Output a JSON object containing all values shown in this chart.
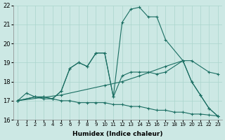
{
  "xlabel": "Humidex (Indice chaleur)",
  "bg_color": "#cce8e4",
  "grid_color": "#aad4cc",
  "line_color": "#1a6e62",
  "xlim": [
    -0.5,
    23.5
  ],
  "ylim": [
    16,
    22
  ],
  "xticks": [
    0,
    1,
    2,
    3,
    4,
    5,
    6,
    7,
    8,
    9,
    10,
    11,
    12,
    13,
    14,
    15,
    16,
    17,
    18,
    19,
    20,
    21,
    22,
    23
  ],
  "yticks": [
    16,
    17,
    18,
    19,
    20,
    21,
    22
  ],
  "series": [
    {
      "x": [
        0,
        1,
        2,
        3,
        4,
        5,
        6,
        7,
        8,
        9,
        10,
        11,
        12,
        13,
        14,
        15,
        16,
        17,
        18,
        19,
        20,
        21,
        22,
        23
      ],
      "y": [
        17.0,
        17.4,
        17.2,
        17.1,
        17.1,
        17.0,
        17.0,
        16.9,
        16.9,
        16.9,
        16.9,
        16.8,
        16.8,
        16.7,
        16.7,
        16.6,
        16.5,
        16.5,
        16.4,
        16.4,
        16.3,
        16.3,
        16.25,
        16.2
      ]
    },
    {
      "x": [
        0,
        5,
        10,
        12,
        14,
        17,
        19,
        20,
        22,
        23
      ],
      "y": [
        17.0,
        17.3,
        17.8,
        18.0,
        18.3,
        18.8,
        19.1,
        19.1,
        18.5,
        18.4
      ]
    },
    {
      "x": [
        0,
        2,
        3,
        4,
        5,
        6,
        7,
        8,
        9,
        10,
        11,
        12,
        13,
        14,
        15,
        16,
        17,
        19,
        20,
        21,
        22,
        23
      ],
      "y": [
        17.0,
        17.2,
        17.2,
        17.1,
        17.5,
        18.7,
        19.0,
        18.8,
        19.5,
        19.5,
        17.2,
        18.3,
        18.5,
        18.5,
        18.5,
        18.4,
        18.5,
        19.1,
        18.0,
        17.3,
        16.6,
        16.2
      ]
    },
    {
      "x": [
        0,
        2,
        3,
        4,
        5,
        6,
        7,
        8,
        9,
        10,
        11,
        12,
        13,
        14,
        15,
        16,
        17,
        19,
        20,
        21,
        22,
        23
      ],
      "y": [
        17.0,
        17.2,
        17.2,
        17.1,
        17.5,
        18.7,
        19.0,
        18.8,
        19.5,
        19.5,
        17.2,
        21.1,
        21.8,
        21.9,
        21.4,
        21.4,
        20.2,
        19.1,
        18.0,
        17.3,
        16.6,
        16.2
      ]
    }
  ]
}
